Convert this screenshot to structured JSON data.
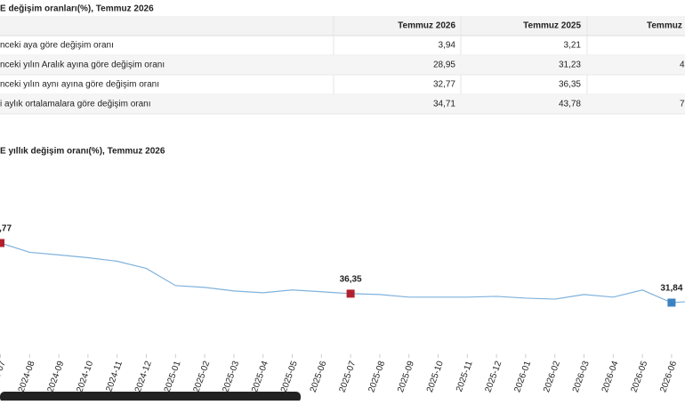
{
  "table": {
    "title": "E değişim oranları(%), Temmuz 2026",
    "header": [
      "Temmuz 2026",
      "Temmuz 2025",
      "Temmuz 2"
    ],
    "rows": [
      [
        "nceki aya göre değişim oranı",
        "3,94",
        "3,21"
      ],
      [
        "nceki yılın Aralık ayına göre değişim oranı",
        "28,95",
        "31,23",
        "4"
      ],
      [
        "nceki yılın aynı ayına göre değişim oranı",
        "32,77",
        "36,35"
      ],
      [
        "i aylık ortalamalara göre değişim oranı",
        "34,71",
        "43,78",
        "7"
      ]
    ]
  },
  "chart_data": {
    "type": "line",
    "title": "E yıllık değişim oranı(%), Temmuz 2026",
    "categories": [
      "2024-07",
      "2024-08",
      "2024-09",
      "2024-10",
      "2024-11",
      "2024-12",
      "2025-01",
      "2025-02",
      "2025-03",
      "2025-04",
      "2025-05",
      "2025-06",
      "2025-07",
      "2025-08",
      "2025-09",
      "2025-10",
      "2025-11",
      "2025-12",
      "2026-01",
      "2026-02",
      "2026-03",
      "2026-04",
      "2026-05",
      "2026-06",
      "2026-07"
    ],
    "series": [
      {
        "color": "#7fb2dd",
        "values": [
          61.77,
          57.1,
          55.8,
          54.4,
          52.6,
          49.0,
          40.4,
          39.5,
          37.7,
          36.8,
          38.2,
          37.3,
          36.35,
          35.9,
          34.6,
          34.6,
          34.6,
          35.0,
          34.1,
          33.6,
          35.9,
          34.6,
          38.2,
          31.84,
          32.77
        ],
        "value_labels": [
          "61,77",
          null,
          null,
          null,
          null,
          null,
          null,
          null,
          null,
          null,
          null,
          null,
          "36,35",
          null,
          null,
          null,
          null,
          null,
          null,
          null,
          null,
          null,
          null,
          "31,84",
          null
        ],
        "marker_colors": [
          "#b3202d",
          null,
          null,
          null,
          null,
          null,
          null,
          null,
          null,
          null,
          null,
          null,
          "#b3202d",
          null,
          null,
          null,
          null,
          null,
          null,
          null,
          null,
          null,
          null,
          "#3c82c2",
          null
        ]
      }
    ]
  }
}
